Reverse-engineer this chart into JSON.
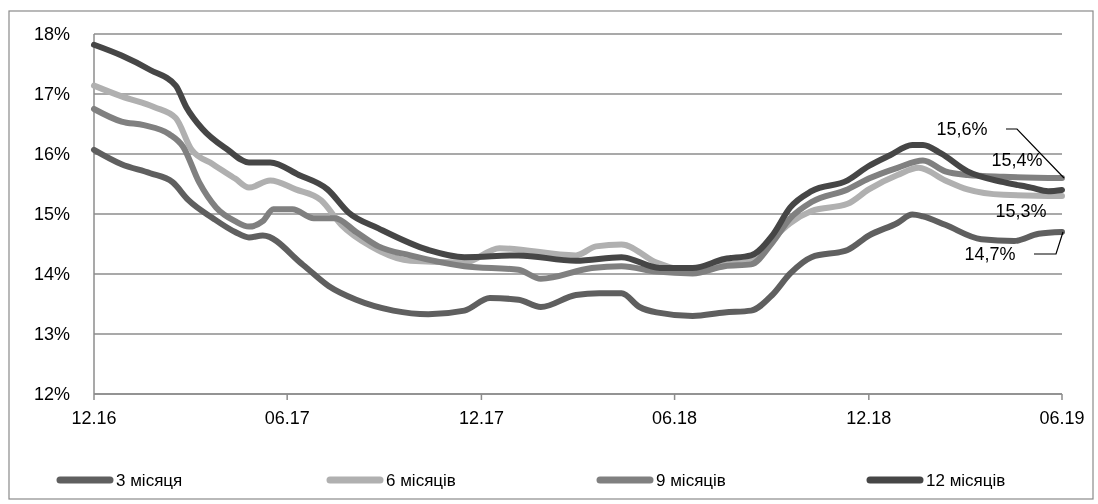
{
  "chart_data": {
    "type": "line",
    "xlim": [
      "2016-12-01",
      "2019-06-01"
    ],
    "xticks": [
      {
        "value": "2016-12-01",
        "label": "12.16"
      },
      {
        "value": "2017-06-01",
        "label": "06.17"
      },
      {
        "value": "2017-12-01",
        "label": "12.17"
      },
      {
        "value": "2018-06-01",
        "label": "06.18"
      },
      {
        "value": "2018-12-01",
        "label": "12.18"
      },
      {
        "value": "2019-06-01",
        "label": "06.19"
      }
    ],
    "ylim": [
      12,
      18
    ],
    "yticks": [
      {
        "value": 12,
        "label": "12%"
      },
      {
        "value": 13,
        "label": "13%"
      },
      {
        "value": 14,
        "label": "14%"
      },
      {
        "value": 15,
        "label": "15%"
      },
      {
        "value": 16,
        "label": "16%"
      },
      {
        "value": 17,
        "label": "17%"
      },
      {
        "value": 18,
        "label": "18%"
      }
    ],
    "grid": "y",
    "legend": "bottom",
    "line_style": "solid",
    "series": [
      {
        "name": "3 місяця",
        "color": "#5f5f5f",
        "x": [
          "2016-12-01",
          "2016-12-27",
          "2017-01-23",
          "2017-02-13",
          "2017-02-28",
          "2017-03-23",
          "2017-04-13",
          "2017-04-26",
          "2017-05-09",
          "2017-06-16",
          "2017-07-10",
          "2017-08-05",
          "2017-09-09",
          "2017-10-12",
          "2017-11-15",
          "2017-12-09",
          "2018-01-05",
          "2018-01-26",
          "2018-02-28",
          "2018-03-22",
          "2018-04-12",
          "2018-04-29",
          "2018-05-15",
          "2018-06-18",
          "2018-07-18",
          "2018-08-12",
          "2018-09-01",
          "2018-09-18",
          "2018-10-08",
          "2018-11-11",
          "2018-12-01",
          "2018-12-28",
          "2019-01-11",
          "2019-01-21",
          "2019-02-11",
          "2019-03-17",
          "2019-04-17",
          "2019-05-10",
          "2019-06-01"
        ],
        "values": [
          16.07,
          15.83,
          15.68,
          15.53,
          15.23,
          14.93,
          14.7,
          14.61,
          14.64,
          14.15,
          13.8,
          13.57,
          13.39,
          13.33,
          13.39,
          13.6,
          13.57,
          13.45,
          13.65,
          13.68,
          13.68,
          13.45,
          13.36,
          13.3,
          13.36,
          13.39,
          13.65,
          14.01,
          14.28,
          14.4,
          14.64,
          14.85,
          14.99,
          14.96,
          14.82,
          14.58,
          14.55,
          14.67,
          14.7
        ]
      },
      {
        "name": "6 місяців",
        "color": "#b0b0b0",
        "x": [
          "2016-12-01",
          "2016-12-27",
          "2017-01-27",
          "2017-02-16",
          "2017-03-03",
          "2017-03-23",
          "2017-04-13",
          "2017-04-26",
          "2017-05-16",
          "2017-06-09",
          "2017-07-03",
          "2017-07-22",
          "2017-08-19",
          "2017-09-25",
          "2017-11-15",
          "2017-12-18",
          "2018-02-28",
          "2018-03-19",
          "2018-04-12",
          "2018-05-15",
          "2018-06-18",
          "2018-07-18",
          "2018-08-12",
          "2018-09-01",
          "2018-09-18",
          "2018-10-08",
          "2018-11-11",
          "2018-12-01",
          "2018-12-28",
          "2019-01-17",
          "2019-02-11",
          "2019-03-04",
          "2019-04-07",
          "2019-06-01"
        ],
        "values": [
          17.14,
          16.96,
          16.78,
          16.6,
          16.07,
          15.83,
          15.59,
          15.44,
          15.56,
          15.41,
          15.23,
          14.82,
          14.46,
          14.22,
          14.19,
          14.43,
          14.31,
          14.46,
          14.49,
          14.19,
          14.04,
          14.16,
          14.22,
          14.58,
          14.85,
          15.05,
          15.17,
          15.41,
          15.65,
          15.77,
          15.56,
          15.41,
          15.32,
          15.3
        ]
      },
      {
        "name": "9 місяців",
        "color": "#808080",
        "x": [
          "2016-12-01",
          "2016-12-27",
          "2017-01-17",
          "2017-02-10",
          "2017-02-23",
          "2017-03-10",
          "2017-03-26",
          "2017-04-13",
          "2017-04-26",
          "2017-05-09",
          "2017-05-19",
          "2017-06-06",
          "2017-06-26",
          "2017-07-16",
          "2017-08-05",
          "2017-08-26",
          "2017-09-25",
          "2017-11-15",
          "2018-01-05",
          "2018-01-26",
          "2018-03-15",
          "2018-04-12",
          "2018-05-15",
          "2018-06-18",
          "2018-07-18",
          "2018-08-12",
          "2018-09-01",
          "2018-09-18",
          "2018-10-08",
          "2018-11-11",
          "2018-12-01",
          "2018-12-28",
          "2019-01-21",
          "2019-02-11",
          "2019-03-04",
          "2019-04-07",
          "2019-06-01"
        ],
        "values": [
          16.75,
          16.54,
          16.48,
          16.33,
          16.12,
          15.53,
          15.11,
          14.88,
          14.79,
          14.88,
          15.08,
          15.08,
          14.93,
          14.93,
          14.7,
          14.46,
          14.31,
          14.13,
          14.07,
          13.92,
          14.1,
          14.13,
          14.04,
          14.01,
          14.13,
          14.16,
          14.52,
          14.93,
          15.2,
          15.41,
          15.59,
          15.77,
          15.89,
          15.71,
          15.65,
          15.62,
          15.6
        ]
      },
      {
        "name": "12 місяців",
        "color": "#464646",
        "x": [
          "2016-12-01",
          "2016-12-27",
          "2017-01-23",
          "2017-02-16",
          "2017-02-26",
          "2017-03-13",
          "2017-04-06",
          "2017-04-26",
          "2017-05-16",
          "2017-06-12",
          "2017-07-09",
          "2017-07-29",
          "2017-08-26",
          "2017-10-12",
          "2017-11-15",
          "2018-01-05",
          "2018-02-28",
          "2018-04-12",
          "2018-05-18",
          "2018-06-18",
          "2018-07-18",
          "2018-08-12",
          "2018-09-01",
          "2018-09-18",
          "2018-10-08",
          "2018-11-11",
          "2018-12-01",
          "2018-12-21",
          "2019-01-11",
          "2019-01-21",
          "2019-02-07",
          "2019-03-04",
          "2019-04-07",
          "2019-05-03",
          "2019-05-19",
          "2019-06-01"
        ],
        "values": [
          17.82,
          17.64,
          17.4,
          17.14,
          16.78,
          16.42,
          16.07,
          15.86,
          15.86,
          15.65,
          15.41,
          15.02,
          14.76,
          14.4,
          14.28,
          14.31,
          14.22,
          14.28,
          14.1,
          14.1,
          14.25,
          14.31,
          14.64,
          15.11,
          15.38,
          15.56,
          15.8,
          15.98,
          16.15,
          16.15,
          16.01,
          15.71,
          15.53,
          15.44,
          15.38,
          15.4
        ]
      }
    ],
    "annotations": [
      {
        "text": "15,6%",
        "x": "2019-06-01",
        "y": 15.6
      },
      {
        "text": "15,4%",
        "x": "2019-06-01",
        "y": 15.4
      },
      {
        "text": "15,3%",
        "x": "2019-06-01",
        "y": 15.3
      },
      {
        "text": "14,7%",
        "x": "2019-06-01",
        "y": 14.7
      }
    ]
  }
}
